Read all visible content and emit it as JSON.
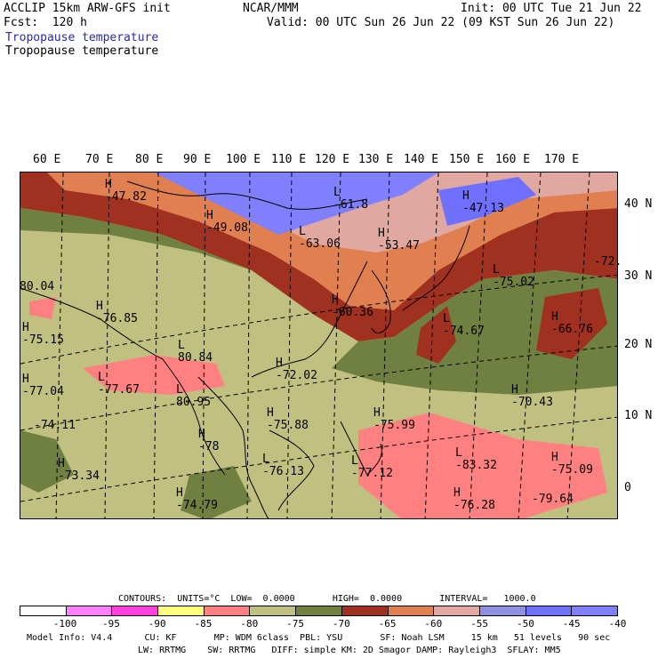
{
  "header": {
    "left_line1": "ACCLIP 15km ARW-GFS init",
    "left_line2": "Fcst:  120 h",
    "center": "NCAR/MMM",
    "init": "Init: 00 UTC Tue 21 Jun 22",
    "valid": "Valid: 00 UTC Sun 26 Jun 22 (09 KST Sun 26 Jun 22)",
    "title1": "Tropopause temperature",
    "title2": "Tropopause temperature"
  },
  "lon_labels": [
    "60 E",
    "70 E",
    "80 E",
    "90 E",
    "100 E",
    "110 E",
    "120 E",
    "130 E",
    "140 E",
    "150 E",
    "160 E",
    "170 E"
  ],
  "lat_labels": [
    "40 N",
    "30 N",
    "20 N",
    "10 N",
    "0"
  ],
  "labels": [
    {
      "t": "H",
      "v": "-47.82"
    },
    {
      "t": "H",
      "v": "-49.08"
    },
    {
      "t": "L",
      "v": "-61.8"
    },
    {
      "t": "L",
      "v": "-63.06"
    },
    {
      "t": "H",
      "v": "-53.47"
    },
    {
      "t": "H",
      "v": "-47.13"
    },
    {
      "t": "",
      "v": "-72."
    },
    {
      "t": "L",
      "v": "-75.02"
    },
    {
      "t": "",
      "v": "80.04"
    },
    {
      "t": "H",
      "v": "-76.85"
    },
    {
      "t": "H",
      "v": "-75.15"
    },
    {
      "t": "H",
      "v": "-60.36"
    },
    {
      "t": "L",
      "v": "-74.67"
    },
    {
      "t": "H",
      "v": "-66.76"
    },
    {
      "t": "L",
      "v": "80.84"
    },
    {
      "t": "H",
      "v": "-72.02"
    },
    {
      "t": "H",
      "v": "-77.04"
    },
    {
      "t": "L",
      "v": "-77.67"
    },
    {
      "t": "L",
      "v": "80.95"
    },
    {
      "t": "H",
      "v": "-70.43"
    },
    {
      "t": "H",
      "v": "-75.88"
    },
    {
      "t": "H",
      "v": "-75.99"
    },
    {
      "t": "",
      "v": "-74.11"
    },
    {
      "t": "H",
      "v": "-78"
    },
    {
      "t": "L",
      "v": "-83.32"
    },
    {
      "t": "H",
      "v": "-75.09"
    },
    {
      "t": "H",
      "v": "-73.34"
    },
    {
      "t": "L",
      "v": "-76.13"
    },
    {
      "t": "L",
      "v": "-77.12"
    },
    {
      "t": "H",
      "v": "-74.79"
    },
    {
      "t": "H",
      "v": "-76.28"
    },
    {
      "t": "",
      "v": "-79.64"
    }
  ],
  "legend": {
    "contours": "CONTOURS:  UNITS=°C  LOW=  0.0000       HIGH=  0.0000       INTERVAL=   1000.0",
    "ticks": [
      "-100",
      "-95",
      "-90",
      "-85",
      "-80",
      "-75",
      "-70",
      "-65",
      "-60",
      "-55",
      "-50",
      "-45",
      "-40",
      "°C"
    ],
    "colors": [
      "#ffffff",
      "#ff80ff",
      "#ff40e0",
      "#ffff80",
      "#ff8080",
      "#c0c080",
      "#708040",
      "#a03020",
      "#e08050",
      "#e0a8a0",
      "#9090e0",
      "#7070ff",
      "#8080ff"
    ]
  },
  "footer": {
    "line1": "Model Info: V4.4      CU: KF       MP: WDM 6class  PBL: YSU       SF: Noah LSM     15 km   51 levels   90 sec",
    "line2": "LW: RRTMG    SW: RRTMG   DIFF: simple KM: 2D Smagor DAMP: Rayleigh3  SFLAY: MM5"
  }
}
